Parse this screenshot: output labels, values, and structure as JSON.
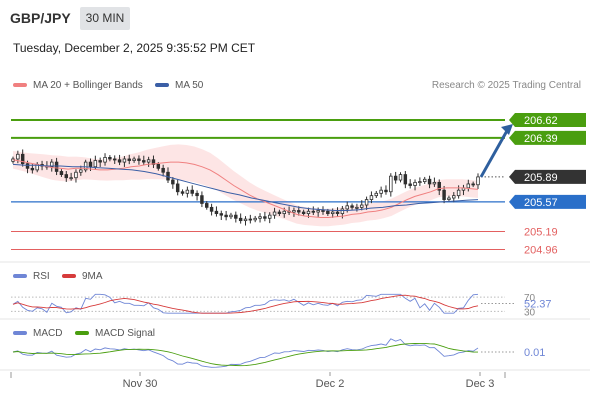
{
  "header": {
    "symbol": "GBP/JPY",
    "timeframe": "30 MIN",
    "timestamp": "Tuesday, December 2, 2025 9:35:52 PM CET"
  },
  "legend": {
    "ma20": "MA 20 + Bollinger Bands",
    "ma50": "MA 50",
    "credit": "Research © 2025 Trading Central",
    "rsi": "RSI",
    "rsi_ma": "9MA",
    "macd": "MACD",
    "macd_signal": "MACD Signal"
  },
  "colors": {
    "ma20": "#f08080",
    "ma50": "#3b5fa6",
    "resistance": "#4a9e0f",
    "support": "#2a6fc9",
    "pivot_red": "#e36060",
    "current": "#333333",
    "band_fill": "#fde0e0",
    "rsi_line": "#6f86d6",
    "rsi_ma_line": "#d63b3b",
    "macd_line": "#6f86d6",
    "macd_signal_line": "#4a9e0f",
    "arrow": "#2e5f9e"
  },
  "levels": {
    "r2": "206.62",
    "r1": "206.39",
    "current": "205.89",
    "s1": "205.57",
    "s2": "205.19",
    "s3": "204.96"
  },
  "indicators": {
    "rsi_value": "52.37",
    "rsi_70": "70",
    "rsi_30": "30",
    "macd_value": "0.01"
  },
  "x_axis": {
    "ticks": [
      "Nov 30",
      "Dec 2",
      "Dec 3"
    ]
  },
  "chart_data": {
    "type": "line",
    "title": "GBP/JPY",
    "xlabel": "",
    "ylabel": "",
    "ylim": [
      204.8,
      206.85
    ],
    "x_ticks": [
      "Nov 30",
      "Dec 2",
      "Dec 3"
    ],
    "series": [
      {
        "name": "GBP/JPY",
        "values": [
          206.12,
          206.18,
          206.06,
          206.0,
          205.98,
          206.05,
          206.03,
          206.02,
          206.08,
          205.96,
          205.92,
          205.88,
          205.88,
          205.95,
          205.98,
          206.08,
          206.02,
          206.1,
          206.08,
          206.14,
          206.12,
          206.11,
          206.08,
          206.12,
          206.1,
          206.12,
          206.1,
          206.08,
          206.11,
          206.05,
          206.0,
          205.95,
          205.85,
          205.8,
          205.7,
          205.68,
          205.72,
          205.68,
          205.65,
          205.55,
          205.5,
          205.45,
          205.42,
          205.4,
          205.38,
          205.4,
          205.36,
          205.33,
          205.35,
          205.34,
          205.36,
          205.38,
          205.36,
          205.4,
          205.44,
          205.42,
          205.45,
          205.44,
          205.46,
          205.44,
          205.42,
          205.45,
          205.44,
          205.46,
          205.45,
          205.42,
          205.44,
          205.42,
          205.48,
          205.52,
          205.5,
          205.5,
          205.53,
          205.6,
          205.65,
          205.68,
          205.72,
          205.7,
          205.9,
          205.85,
          205.92,
          205.8,
          205.78,
          205.82,
          205.83,
          205.86,
          205.8,
          205.82,
          205.72,
          205.6,
          205.62,
          205.65,
          205.72,
          205.75,
          205.8,
          205.79,
          205.89
        ]
      },
      {
        "name": "MA 20",
        "values": [
          206.11,
          206.09,
          206.07,
          206.05,
          206.03,
          206.01,
          206.0,
          205.99,
          206.0,
          206.0,
          205.99,
          205.98,
          205.98,
          205.99,
          206.0,
          206.02,
          206.03,
          206.05,
          206.06,
          206.07,
          206.08,
          206.08,
          206.07,
          206.05,
          206.02,
          205.98,
          205.92,
          205.85,
          205.78,
          205.72,
          205.66,
          205.61,
          205.57,
          205.53,
          205.49,
          205.45,
          205.41,
          205.39,
          205.38,
          205.37,
          205.37,
          205.38,
          205.39,
          205.41,
          205.42,
          205.44,
          205.45,
          205.47,
          205.5,
          205.55,
          205.6,
          205.64,
          205.67,
          205.7,
          205.74,
          205.75,
          205.75,
          205.75,
          205.74,
          205.73
        ]
      },
      {
        "name": "MA 50",
        "values": [
          206.05,
          206.04,
          206.04,
          206.03,
          206.03,
          206.02,
          206.02,
          206.01,
          206.0,
          205.99,
          205.98,
          205.96,
          205.93,
          205.89,
          205.85,
          205.81,
          205.77,
          205.73,
          205.69,
          205.66,
          205.62,
          205.59,
          205.56,
          205.53,
          205.5,
          205.48,
          205.47,
          205.46,
          205.46,
          205.47,
          205.49,
          205.5,
          205.52,
          205.53,
          205.55,
          205.56,
          205.57,
          205.58,
          205.59,
          205.6
        ]
      }
    ],
    "price_levels": [
      206.62,
      206.39,
      205.89,
      205.57,
      205.19,
      204.96
    ],
    "rsi": {
      "last": 52.37,
      "levels": [
        70,
        30
      ]
    },
    "macd": {
      "last": 0.01
    }
  }
}
